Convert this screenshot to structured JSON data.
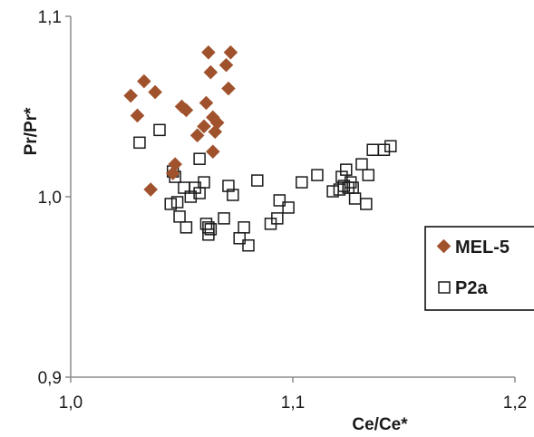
{
  "chart_data": {
    "type": "scatter",
    "xlabel": "Ce/Ce*",
    "ylabel": "Pr/Pr*",
    "xlim": [
      1.0,
      1.2
    ],
    "ylim": [
      0.9,
      1.1
    ],
    "x_ticks": [
      {
        "value": 1.0,
        "label": "1,0"
      },
      {
        "value": 1.1,
        "label": "1,1"
      },
      {
        "value": 1.2,
        "label": "1,2"
      }
    ],
    "y_ticks": [
      {
        "value": 0.9,
        "label": "0,9"
      },
      {
        "value": 1.0,
        "label": "1,0"
      },
      {
        "value": 1.1,
        "label": "1,1"
      }
    ],
    "grid": false,
    "legend_position": "right",
    "series": [
      {
        "name": "MEL-5",
        "marker": "diamond",
        "color": "#a0522d",
        "points": [
          [
            1.027,
            1.056
          ],
          [
            1.03,
            1.045
          ],
          [
            1.033,
            1.064
          ],
          [
            1.036,
            1.004
          ],
          [
            1.038,
            1.058
          ],
          [
            1.046,
            1.013
          ],
          [
            1.047,
            1.018
          ],
          [
            1.05,
            1.05
          ],
          [
            1.052,
            1.048
          ],
          [
            1.057,
            1.034
          ],
          [
            1.06,
            1.039
          ],
          [
            1.061,
            1.052
          ],
          [
            1.062,
            1.08
          ],
          [
            1.063,
            1.069
          ],
          [
            1.064,
            1.044
          ],
          [
            1.064,
            1.025
          ],
          [
            1.065,
            1.036
          ],
          [
            1.066,
            1.041
          ],
          [
            1.07,
            1.073
          ],
          [
            1.071,
            1.06
          ],
          [
            1.072,
            1.08
          ]
        ]
      },
      {
        "name": "P2a",
        "marker": "square",
        "color": "#1a1a1a",
        "points": [
          [
            1.031,
            1.03
          ],
          [
            1.04,
            1.037
          ],
          [
            1.045,
            0.996
          ],
          [
            1.046,
            1.014
          ],
          [
            1.047,
            1.011
          ],
          [
            1.048,
            0.997
          ],
          [
            1.049,
            0.989
          ],
          [
            1.051,
            1.005
          ],
          [
            1.052,
            0.983
          ],
          [
            1.054,
            1.0
          ],
          [
            1.056,
            1.005
          ],
          [
            1.058,
            1.002
          ],
          [
            1.058,
            1.021
          ],
          [
            1.06,
            1.008
          ],
          [
            1.061,
            0.985
          ],
          [
            1.062,
            0.983
          ],
          [
            1.062,
            0.979
          ],
          [
            1.063,
            0.982
          ],
          [
            1.069,
            0.988
          ],
          [
            1.071,
            1.006
          ],
          [
            1.073,
            1.001
          ],
          [
            1.076,
            0.977
          ],
          [
            1.078,
            0.983
          ],
          [
            1.08,
            0.973
          ],
          [
            1.084,
            1.009
          ],
          [
            1.09,
            0.985
          ],
          [
            1.093,
            0.988
          ],
          [
            1.094,
            0.998
          ],
          [
            1.098,
            0.994
          ],
          [
            1.104,
            1.008
          ],
          [
            1.111,
            1.012
          ],
          [
            1.118,
            1.003
          ],
          [
            1.121,
            1.004
          ],
          [
            1.122,
            1.011
          ],
          [
            1.123,
            1.006
          ],
          [
            1.124,
            1.015
          ],
          [
            1.125,
            1.005
          ],
          [
            1.126,
            1.008
          ],
          [
            1.127,
            1.005
          ],
          [
            1.128,
            0.999
          ],
          [
            1.131,
            1.018
          ],
          [
            1.133,
            0.996
          ],
          [
            1.134,
            1.012
          ],
          [
            1.136,
            1.026
          ],
          [
            1.141,
            1.026
          ],
          [
            1.144,
            1.028
          ]
        ]
      }
    ]
  }
}
